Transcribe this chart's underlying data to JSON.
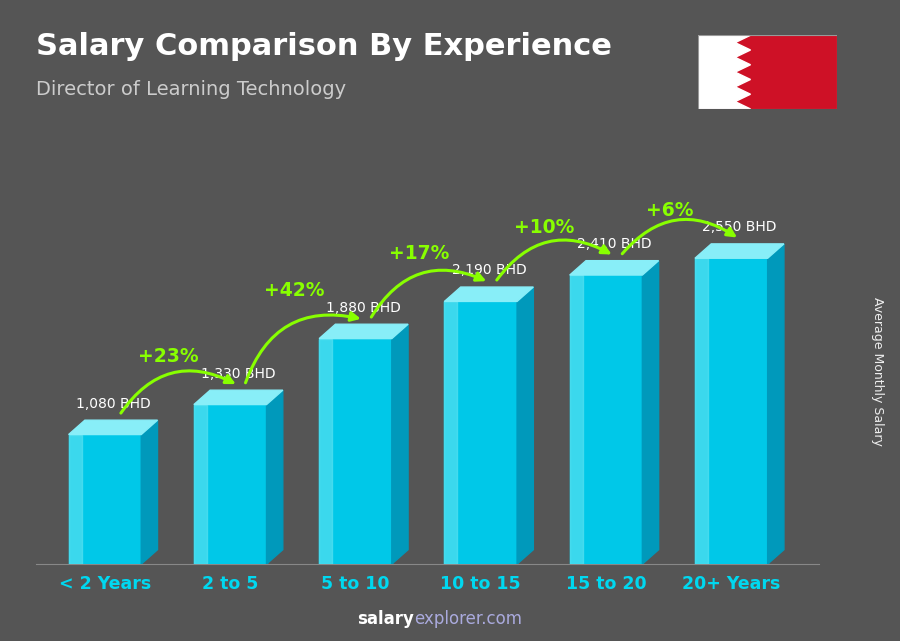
{
  "title": "Salary Comparison By Experience",
  "subtitle": "Director of Learning Technology",
  "categories": [
    "< 2 Years",
    "2 to 5",
    "5 to 10",
    "10 to 15",
    "15 to 20",
    "20+ Years"
  ],
  "values": [
    1080,
    1330,
    1880,
    2190,
    2410,
    2550
  ],
  "labels": [
    "1,080 BHD",
    "1,330 BHD",
    "1,880 BHD",
    "2,190 BHD",
    "2,410 BHD",
    "2,550 BHD"
  ],
  "pct_changes": [
    "+23%",
    "+42%",
    "+17%",
    "+10%",
    "+6%"
  ],
  "bar_color_front": "#00c8e8",
  "bar_color_light": "#55e0f0",
  "bar_color_dark": "#0099bb",
  "bar_color_top": "#88eef8",
  "bar_color_top_dark": "#44ccdd",
  "bg_color": "#555555",
  "title_color": "#ffffff",
  "subtitle_color": "#dddddd",
  "label_color": "#ffffff",
  "pct_color": "#88ff00",
  "xtick_color": "#00d8f0",
  "footer_salary_color": "#ffffff",
  "footer_explorer_color": "#aaaaaa",
  "footer_bold": "salary",
  "footer_normal": "explorer.com",
  "ylabel": "Average Monthly Salary",
  "ylim": [
    0,
    3100
  ],
  "flag_red": "#CE1126",
  "flag_white": "#ffffff"
}
